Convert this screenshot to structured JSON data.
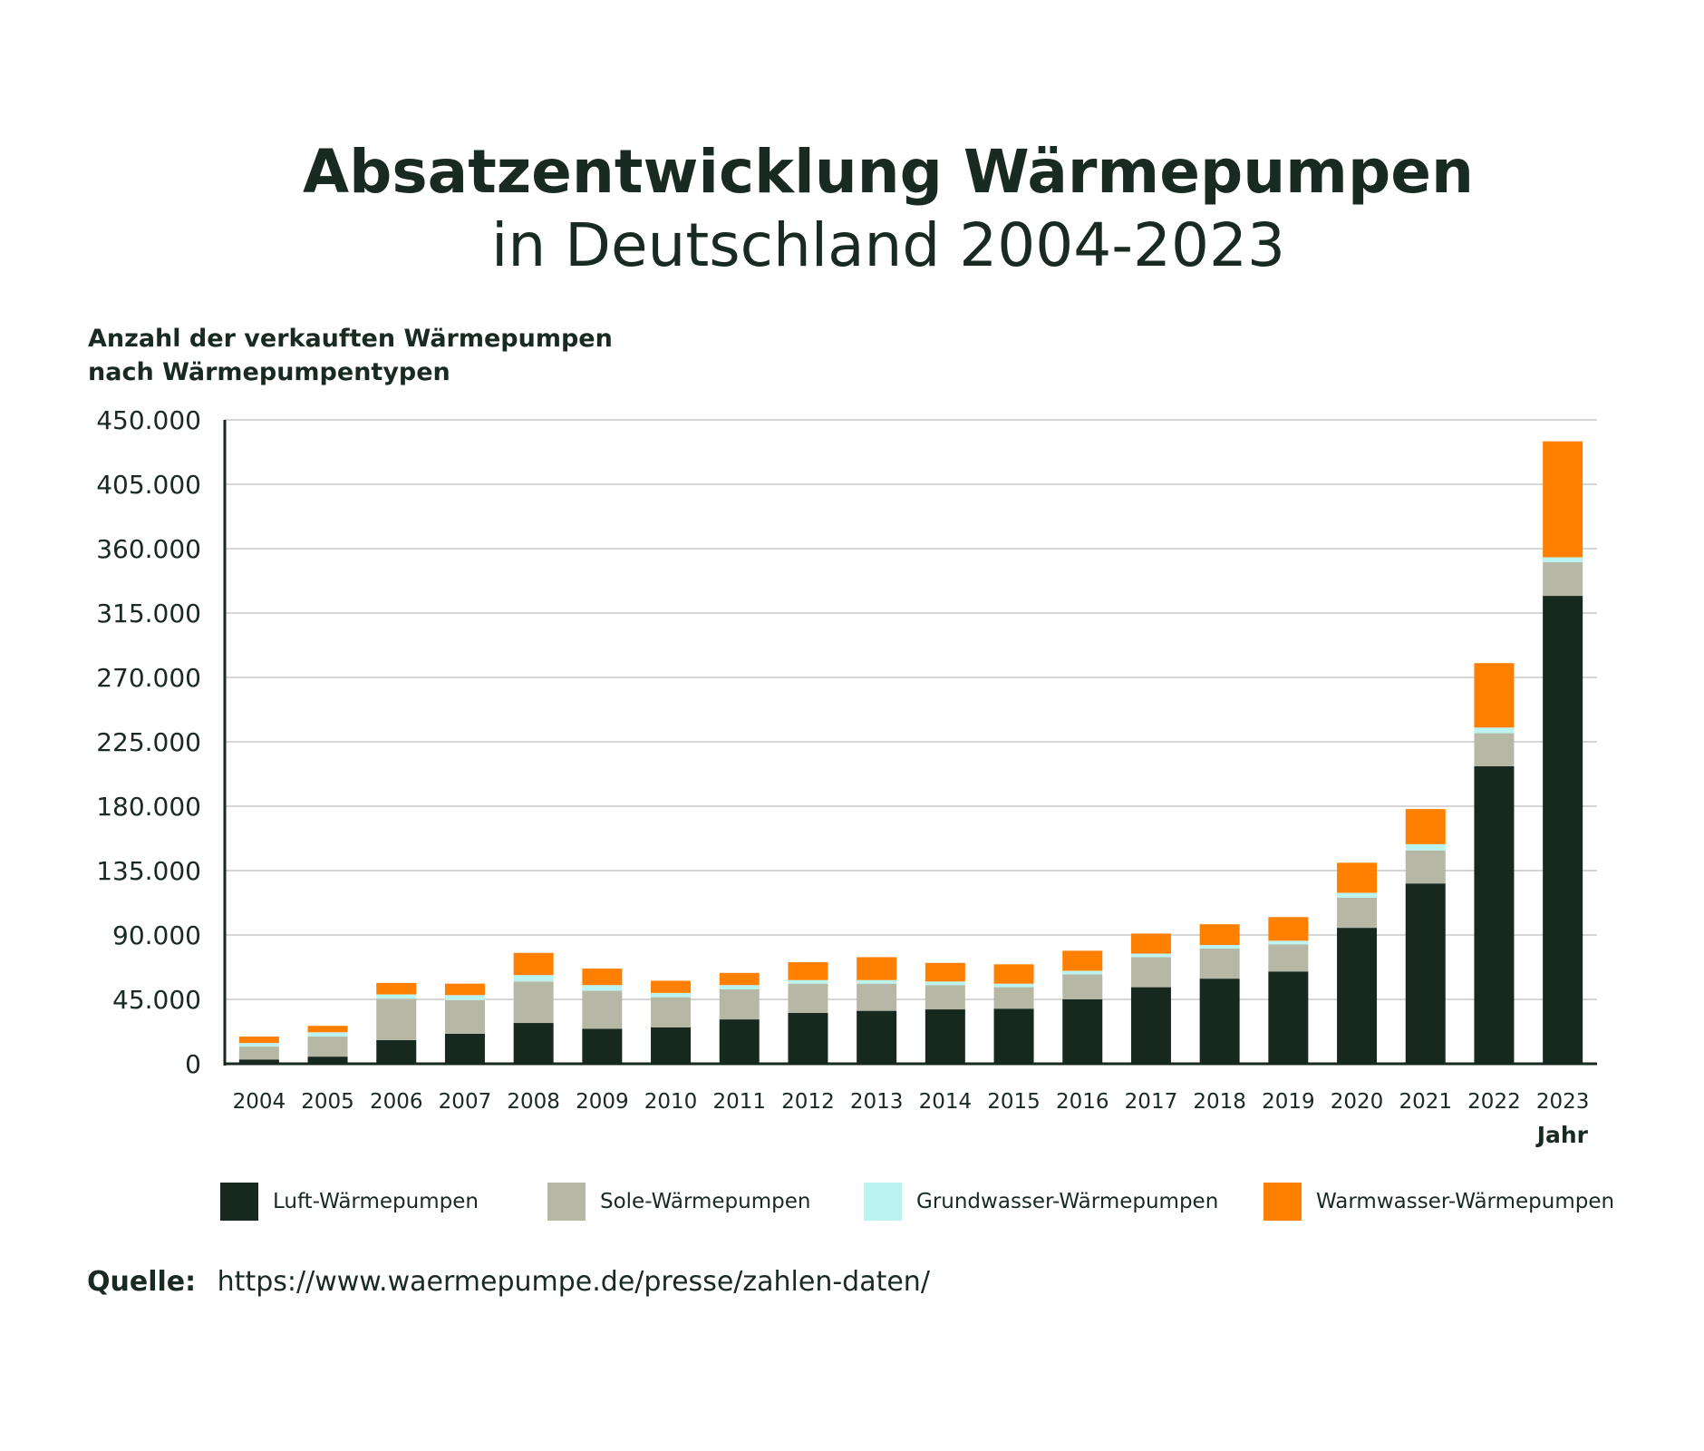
{
  "title": "Absatzentwicklung Wärmepumpen",
  "subtitle": "in Deutschland 2004-2023",
  "source": {
    "label": "Quelle:",
    "url": "https://www.waermepumpe.de/presse/zahlen-daten/"
  },
  "colors": {
    "luft": "#17291f",
    "sole": "#b6b8a5",
    "grundwasser": "#baf3f0",
    "warmwasser": "#ff7f00",
    "grid": "#c8c8c8",
    "axis": "#17291f",
    "text": "#182a22"
  },
  "chart_data": {
    "type": "bar",
    "stacked": true,
    "ylabel_lines": [
      "Anzahl der verkauften Wärmepumpen",
      "nach Wärmepumpentypen"
    ],
    "xlabel": "Jahr",
    "ylim": [
      0,
      450000
    ],
    "yticks": [
      0,
      45000,
      90000,
      135000,
      180000,
      225000,
      270000,
      315000,
      360000,
      405000,
      450000
    ],
    "ytick_labels": [
      "0",
      "45.000",
      "90.000",
      "135.000",
      "180.000",
      "225.000",
      "270.000",
      "315.000",
      "360.000",
      "405.000",
      "450.000"
    ],
    "grid": true,
    "legend_position": "bottom",
    "categories": [
      "2004",
      "2005",
      "2006",
      "2007",
      "2008",
      "2009",
      "2010",
      "2011",
      "2012",
      "2013",
      "2014",
      "2015",
      "2016",
      "2017",
      "2018",
      "2019",
      "2020",
      "2021",
      "2022",
      "2023"
    ],
    "series": [
      {
        "name": "Luft-Wärmepumpen",
        "color_key": "luft",
        "values": [
          3000,
          5000,
          16500,
          21000,
          28500,
          24500,
          25500,
          31000,
          35500,
          37000,
          38000,
          38500,
          45000,
          53500,
          59500,
          64500,
          95000,
          126000,
          208000,
          327000
        ]
      },
      {
        "name": "Sole-Wärmepumpen",
        "color_key": "sole",
        "values": [
          9000,
          14000,
          29000,
          23500,
          29000,
          26500,
          21000,
          21000,
          20500,
          19000,
          17000,
          15000,
          17500,
          21000,
          21000,
          19000,
          21000,
          23000,
          23000,
          23500
        ]
      },
      {
        "name": "Grundwasser-Wärmepumpen",
        "color_key": "grundwasser",
        "values": [
          2500,
          3000,
          3000,
          3500,
          4500,
          4000,
          3000,
          3000,
          2500,
          2500,
          2500,
          2500,
          2500,
          2500,
          2500,
          2500,
          3500,
          4500,
          4000,
          3500
        ]
      },
      {
        "name": "Warmwasser-Wärmepumpen",
        "color_key": "warmwasser",
        "values": [
          4500,
          4500,
          8000,
          8000,
          15500,
          11500,
          8500,
          8500,
          12500,
          16000,
          13000,
          13500,
          14000,
          14000,
          14500,
          16500,
          21000,
          24500,
          45000,
          81000
        ]
      }
    ]
  }
}
